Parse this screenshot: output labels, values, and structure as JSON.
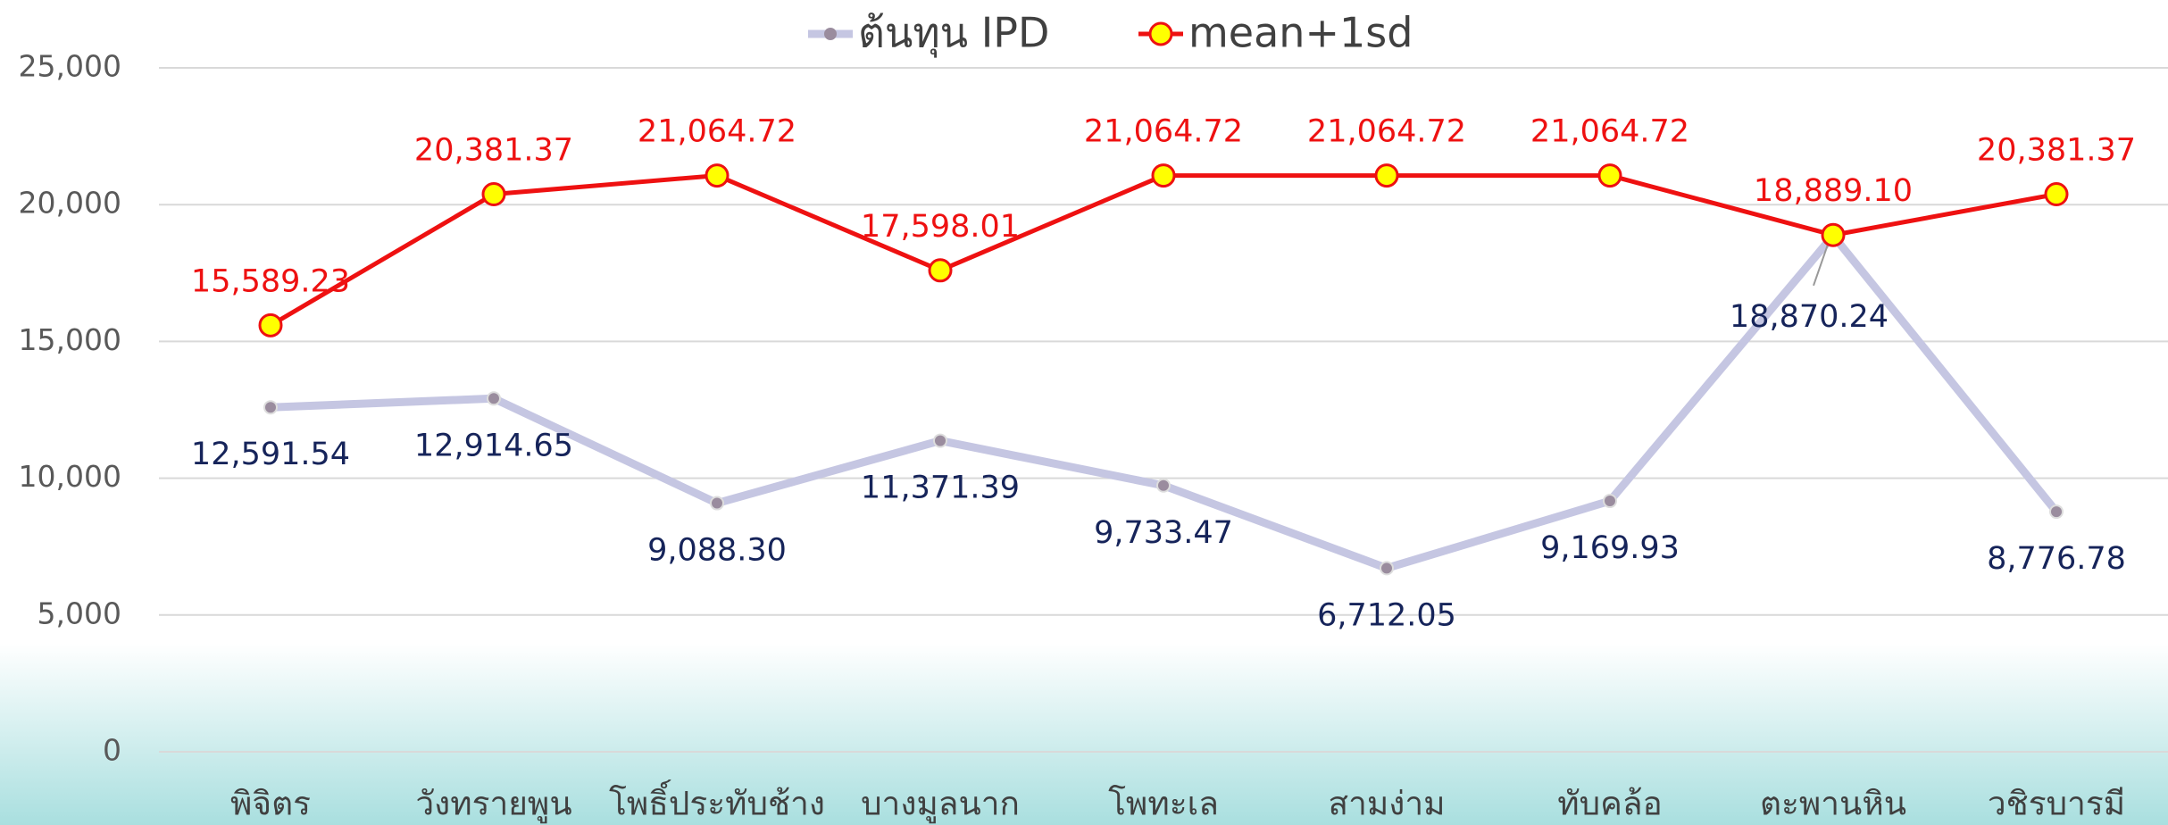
{
  "chart_data": {
    "type": "line",
    "categories": [
      "พิจิตร",
      "วังทรายพูน",
      "โพธิ์ประทับช้าง",
      "บางมูลนาก",
      "โพทะเล",
      "สามง่าม",
      "ทับคล้อ",
      "ตะพานหิน",
      "วชิรบารมี"
    ],
    "series": [
      {
        "name": "ต้นทุน IPD",
        "color": "#c5c6e2",
        "marker_color": "#9a8c9e",
        "label_color": "#16245a",
        "values": [
          12591.54,
          12914.65,
          9088.3,
          11371.39,
          9733.47,
          6712.05,
          9169.93,
          18870.24,
          8776.78
        ],
        "value_labels": [
          "12,591.54",
          "12,914.65",
          "9,088.30",
          "11,371.39",
          "9,733.47",
          "6,712.05",
          "9,169.93",
          "18,870.24",
          "8,776.78"
        ]
      },
      {
        "name": "mean+1sd",
        "color": "#ee1111",
        "marker_color": "#ffff00",
        "label_color": "#ee1111",
        "values": [
          15589.23,
          20381.37,
          21064.72,
          17598.01,
          21064.72,
          21064.72,
          21064.72,
          18889.1,
          20381.37
        ],
        "value_labels": [
          "15,589.23",
          "20,381.37",
          "21,064.72",
          "17,598.01",
          "21,064.72",
          "21,064.72",
          "21,064.72",
          "18,889.10",
          "20,381.37"
        ]
      }
    ],
    "ylim": [
      0,
      25000
    ],
    "yticks": [
      0,
      {
        "value": 5000,
        "label": "5,000"
      },
      {
        "value": 10000,
        "label": "10,000"
      },
      {
        "value": 15000,
        "label": "15,000"
      },
      {
        "value": 20000,
        "label": "20,000"
      },
      {
        "value": 25000,
        "label": "25,000"
      }
    ],
    "grid": true,
    "legend": "top"
  }
}
